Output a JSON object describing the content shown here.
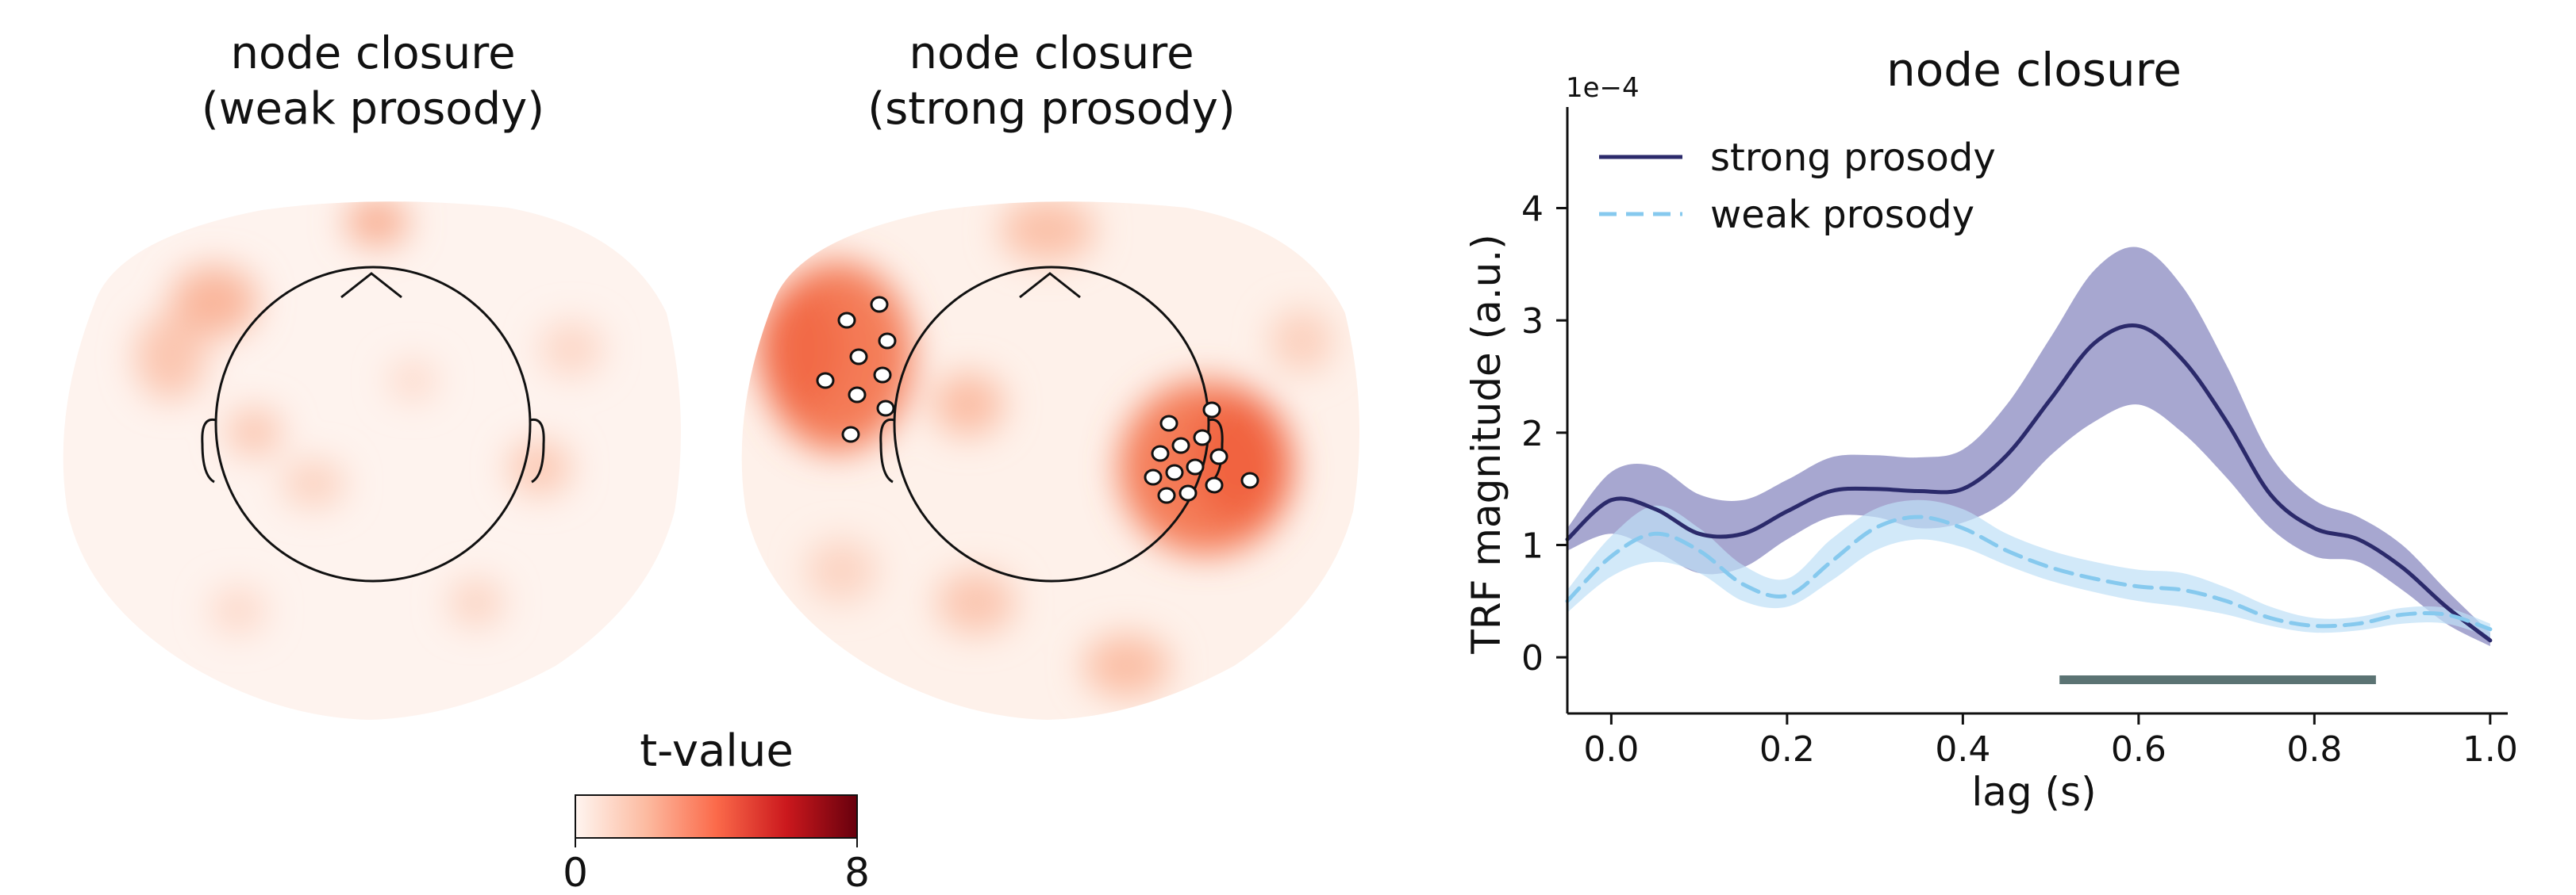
{
  "panels": {
    "weak": {
      "title_line1": "node closure",
      "title_line2": "(weak prosody)"
    },
    "strong": {
      "title_line1": "node closure",
      "title_line2": "(strong prosody)"
    }
  },
  "colorbar": {
    "label": "t-value",
    "min_label": "0",
    "max_label": "8",
    "min": 0,
    "max": 8,
    "colormap": [
      "#fff5f0",
      "#fcbba1",
      "#fb6a4a",
      "#cb181d",
      "#67000d"
    ]
  },
  "colors": {
    "strong_line": "#2b2a6b",
    "strong_band": "#8a89c0",
    "weak_line": "#86c9ee",
    "weak_band": "#bfe0f6",
    "significance_bar": "#5b7373",
    "sensor_fill": "#ffffff",
    "sensor_stroke": "#111111"
  },
  "chart_data": {
    "type": "line",
    "title": "node closure",
    "xlabel": "lag (s)",
    "ylabel": "TRF magnitude (a.u.)",
    "y_scale_label": "1e−4",
    "xlim": [
      -0.05,
      1.02
    ],
    "ylim": [
      -0.5,
      4.9
    ],
    "xticks": [
      0.0,
      0.2,
      0.4,
      0.6,
      0.8,
      1.0
    ],
    "xtick_labels": [
      "0.0",
      "0.2",
      "0.4",
      "0.6",
      "0.8",
      "1.0"
    ],
    "yticks": [
      0,
      1,
      2,
      3,
      4
    ],
    "ytick_labels": [
      "0",
      "1",
      "2",
      "3",
      "4"
    ],
    "legend_position": "top-left",
    "series": [
      {
        "name": "strong prosody",
        "style": "solid",
        "x": [
          -0.05,
          0.0,
          0.05,
          0.1,
          0.15,
          0.2,
          0.25,
          0.3,
          0.35,
          0.4,
          0.45,
          0.5,
          0.55,
          0.6,
          0.65,
          0.7,
          0.75,
          0.8,
          0.85,
          0.9,
          0.95,
          1.0
        ],
        "y": [
          1.05,
          1.4,
          1.32,
          1.1,
          1.1,
          1.3,
          1.48,
          1.5,
          1.48,
          1.5,
          1.8,
          2.3,
          2.8,
          2.95,
          2.65,
          2.1,
          1.45,
          1.15,
          1.05,
          0.8,
          0.45,
          0.15
        ],
        "lower": [
          0.95,
          1.1,
          0.95,
          0.75,
          0.8,
          1.05,
          1.25,
          1.25,
          1.15,
          1.2,
          1.4,
          1.8,
          2.1,
          2.25,
          2.0,
          1.6,
          1.15,
          0.9,
          0.85,
          0.6,
          0.3,
          0.1
        ],
        "upper": [
          1.15,
          1.65,
          1.7,
          1.45,
          1.4,
          1.58,
          1.78,
          1.8,
          1.78,
          1.85,
          2.25,
          2.85,
          3.45,
          3.65,
          3.3,
          2.6,
          1.8,
          1.4,
          1.25,
          1.0,
          0.6,
          0.22
        ]
      },
      {
        "name": "weak prosody",
        "style": "dashed",
        "x": [
          -0.05,
          0.0,
          0.05,
          0.1,
          0.15,
          0.2,
          0.25,
          0.3,
          0.35,
          0.4,
          0.45,
          0.5,
          0.55,
          0.6,
          0.65,
          0.7,
          0.75,
          0.8,
          0.85,
          0.9,
          0.95,
          1.0
        ],
        "y": [
          0.5,
          0.9,
          1.1,
          0.95,
          0.65,
          0.55,
          0.85,
          1.15,
          1.25,
          1.15,
          0.95,
          0.8,
          0.7,
          0.63,
          0.6,
          0.5,
          0.35,
          0.28,
          0.3,
          0.38,
          0.38,
          0.25
        ],
        "lower": [
          0.4,
          0.72,
          0.85,
          0.75,
          0.5,
          0.45,
          0.68,
          0.95,
          1.05,
          0.98,
          0.82,
          0.68,
          0.58,
          0.5,
          0.45,
          0.38,
          0.28,
          0.22,
          0.24,
          0.3,
          0.3,
          0.18
        ],
        "upper": [
          0.6,
          1.08,
          1.35,
          1.15,
          0.82,
          0.7,
          1.05,
          1.32,
          1.4,
          1.32,
          1.1,
          0.95,
          0.85,
          0.78,
          0.75,
          0.62,
          0.45,
          0.35,
          0.36,
          0.44,
          0.44,
          0.3
        ]
      }
    ],
    "significance": {
      "x_start": 0.51,
      "x_end": 0.87,
      "y": -0.2
    }
  }
}
